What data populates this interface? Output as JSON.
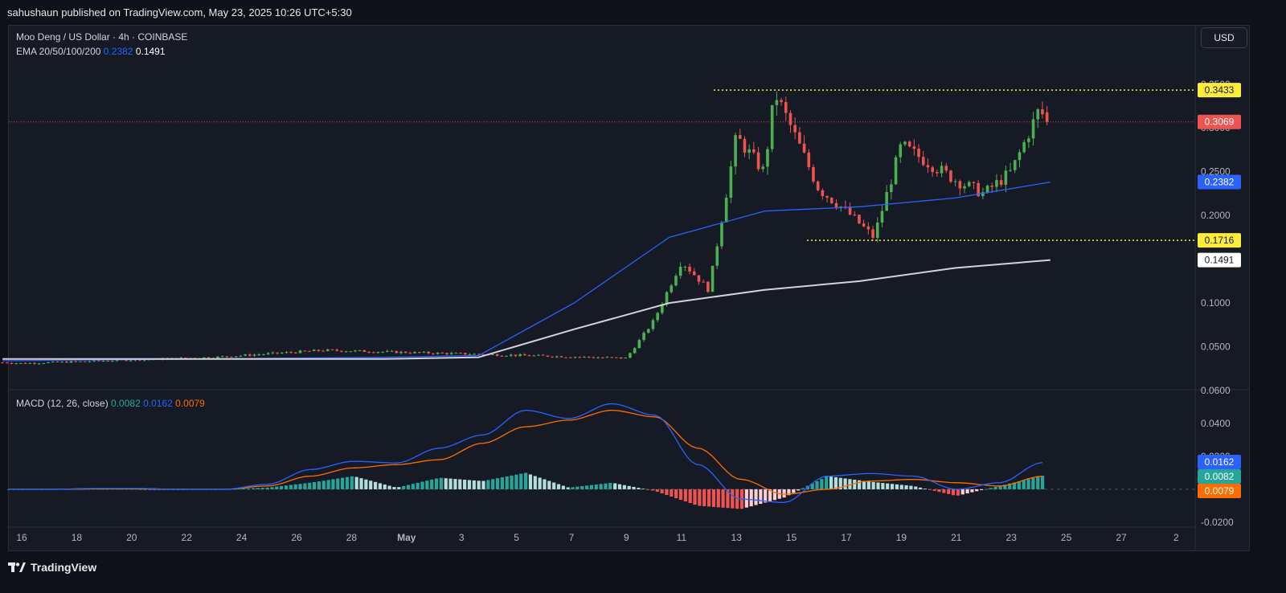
{
  "publish_line": "sahushaun published on TradingView.com, May 23, 2025 10:26 UTC+5:30",
  "currency_button": "USD",
  "brand": "TradingView",
  "legend": {
    "symbol": "Moo Deng / US Dollar · 4h · COINBASE",
    "ema_label": "EMA 20/50/100/200",
    "ema_value_1": "0.2382",
    "ema_value_2": "0.1491",
    "macd_label": "MACD (12, 26, close)",
    "macd_hist": "0.0082",
    "macd_line": "0.0162",
    "macd_signal": "0.0079"
  },
  "colors": {
    "background": "#161a25",
    "up": "#26a69a",
    "up_candle": "#4caf50",
    "down": "#ef5350",
    "ema_fast": "#2962ff",
    "ema_slow": "#d1d4dc",
    "macd_line": "#2962ff",
    "signal_line": "#ff6d00",
    "level": "#ffeb3b"
  },
  "chart_data": [
    {
      "type": "candlestick",
      "title": "Moo Deng / US Dollar · 4h · COINBASE",
      "x_ticks": [
        "16",
        "18",
        "20",
        "22",
        "24",
        "26",
        "28",
        "May",
        "3",
        "5",
        "7",
        "9",
        "11",
        "13",
        "15",
        "17",
        "19",
        "21",
        "23",
        "25",
        "27",
        "2"
      ],
      "y_ticks": [
        "0.0500",
        "0.1000",
        "0.1500",
        "0.2000",
        "0.2500",
        "0.3000",
        "0.3500"
      ],
      "ylim": [
        0.0,
        0.37
      ],
      "price_labels": [
        {
          "value": 0.3433,
          "text": "0.3433",
          "kind": "level"
        },
        {
          "value": 0.3069,
          "text": "0.3069",
          "kind": "last"
        },
        {
          "value": 0.2382,
          "text": "0.2382",
          "kind": "ema_fast"
        },
        {
          "value": 0.1716,
          "text": "0.1716",
          "kind": "level"
        },
        {
          "value": 0.1491,
          "text": "0.1491",
          "kind": "ema_slow"
        }
      ],
      "horizontal_levels": [
        0.3433,
        0.1716
      ],
      "last_price": 0.3069,
      "ohlc_keypoints": [
        {
          "date": "Apr 16",
          "close": 0.031
        },
        {
          "date": "Apr 23",
          "close": 0.038
        },
        {
          "date": "Apr 27",
          "close": 0.046
        },
        {
          "date": "May 8",
          "close": 0.037
        },
        {
          "date": "May 9",
          "close": 0.08
        },
        {
          "date": "May 10",
          "close": 0.148
        },
        {
          "date": "May 11",
          "close": 0.115
        },
        {
          "date": "May 12",
          "close": 0.29
        },
        {
          "date": "May 13",
          "close": 0.25
        },
        {
          "date": "May 13",
          "close": 0.34
        },
        {
          "date": "May 14",
          "close": 0.3
        },
        {
          "date": "May 15",
          "close": 0.23
        },
        {
          "date": "May 16",
          "close": 0.205
        },
        {
          "date": "May 17",
          "close": 0.175
        },
        {
          "date": "May 18",
          "close": 0.28
        },
        {
          "date": "May 20",
          "close": 0.24
        },
        {
          "date": "May 21",
          "close": 0.225
        },
        {
          "date": "May 22",
          "close": 0.25
        },
        {
          "date": "May 23",
          "close": 0.32
        },
        {
          "date": "May 23",
          "close": 0.3069
        }
      ],
      "series": [
        {
          "name": "EMA 20/50/100/200",
          "values": [
            0.034,
            0.035,
            0.036,
            0.037,
            0.038,
            0.04,
            0.1,
            0.175,
            0.205,
            0.21,
            0.22,
            0.2382
          ]
        },
        {
          "name": "EMA 20/50/100/200",
          "values": [
            0.036,
            0.036,
            0.036,
            0.036,
            0.036,
            0.038,
            0.07,
            0.1,
            0.115,
            0.125,
            0.14,
            0.1491
          ]
        }
      ]
    },
    {
      "type": "line",
      "title": "MACD (12, 26, close)",
      "y_ticks": [
        "0.0600",
        "0.0400",
        "0.0200",
        "-0.0200"
      ],
      "ylim": [
        -0.022,
        0.06
      ],
      "price_labels": [
        {
          "value": 0.0162,
          "text": "0.0162",
          "kind": "macd"
        },
        {
          "value": 0.0082,
          "text": "0.0082",
          "kind": "hist"
        },
        {
          "value": 0.0079,
          "text": "0.0079",
          "kind": "signal"
        }
      ],
      "macd": [
        0,
        0,
        0.0005,
        0.0005,
        0,
        0,
        0.003,
        0.012,
        0.017,
        0.016,
        0.025,
        0.033,
        0.048,
        0.043,
        0.052,
        0.045,
        0.015,
        -0.006,
        -0.008,
        0.008,
        0.0096,
        0.008,
        0.0,
        0.004,
        0.0162
      ],
      "signal": [
        0,
        0,
        0.0003,
        0.0003,
        0,
        0,
        0.002,
        0.008,
        0.013,
        0.015,
        0.018,
        0.028,
        0.038,
        0.042,
        0.048,
        0.044,
        0.025,
        0.006,
        -0.003,
        0.0,
        0.005,
        0.006,
        0.004,
        0.002,
        0.0079
      ],
      "histogram": [
        0,
        0,
        0.0002,
        0.0002,
        0,
        0,
        0.001,
        0.004,
        0.008,
        0.001,
        0.007,
        0.005,
        0.01,
        0.001,
        0.004,
        -0.001,
        -0.01,
        -0.012,
        -0.005,
        0.008,
        0.0046,
        0.002,
        -0.004,
        0.002,
        0.0082
      ]
    }
  ]
}
